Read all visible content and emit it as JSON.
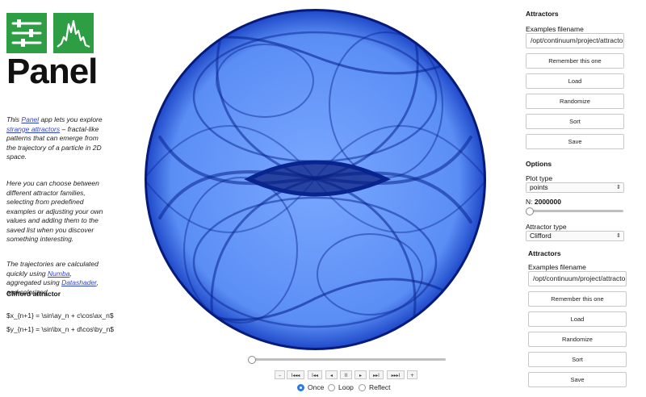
{
  "logo": {
    "word": "Panel"
  },
  "intro": {
    "p1_link": "Panel",
    "p1_a": " app lets you explore ",
    "p1_link2": "strange attractors",
    "p1_b": " – fractal-like patterns that can emerge from the trajectory of a particle in 2D space.",
    "p1_pre": "This ",
    "p2": "Here you can choose between different attractor families, selecting from predefined examples or adjusting your own values and adding them to the saved list when you discover something interesting.",
    "p3_pre": "The trajectories are calculated quickly using ",
    "p3_link": "Numba",
    "p3_mid": ", aggregated using ",
    "p3_link2": "Datashader",
    "p3_post": ", and colorized"
  },
  "equations": {
    "title": "Clifford attractor",
    "x": "$x_{n+1} = \\sin\\ay_n + c\\cos\\ax_n$",
    "y": "$y_{n+1} = \\sin\\bx_n + d\\cos\\by_n$"
  },
  "player": {
    "buttons": [
      "–",
      "I◂◂◂",
      "I◂◂",
      "◂",
      "II",
      "▸",
      "▸▸I",
      "▸▸▸I",
      "+"
    ],
    "modes": [
      "Once",
      "Loop",
      "Reflect"
    ],
    "selected_mode": "Once"
  },
  "panel1": {
    "header": "Attractors",
    "filename_label": "Examples filename",
    "filename_value": "/opt/continuum/project/attractors.yml",
    "buttons": [
      "Remember this one",
      "Load",
      "Randomize",
      "Sort",
      "Save"
    ]
  },
  "options": {
    "header": "Options",
    "plot_type_label": "Plot type",
    "plot_type_value": "points",
    "n_label": "N:",
    "n_value": "2000000",
    "attractor_type_label": "Attractor type",
    "attractor_type_value": "Clifford"
  },
  "panel2": {
    "header": "Attractors",
    "filename_label": "Examples filename",
    "filename_value": "/opt/continuum/project/attractors.yml",
    "buttons": [
      "Remember this one",
      "Load",
      "Randomize",
      "Sort",
      "Save"
    ]
  },
  "colors": {
    "accent": "#2d7ae5",
    "logo_green": "#2e9e45",
    "plot_deep": "#061a7a",
    "plot_light": "#e4efff"
  }
}
